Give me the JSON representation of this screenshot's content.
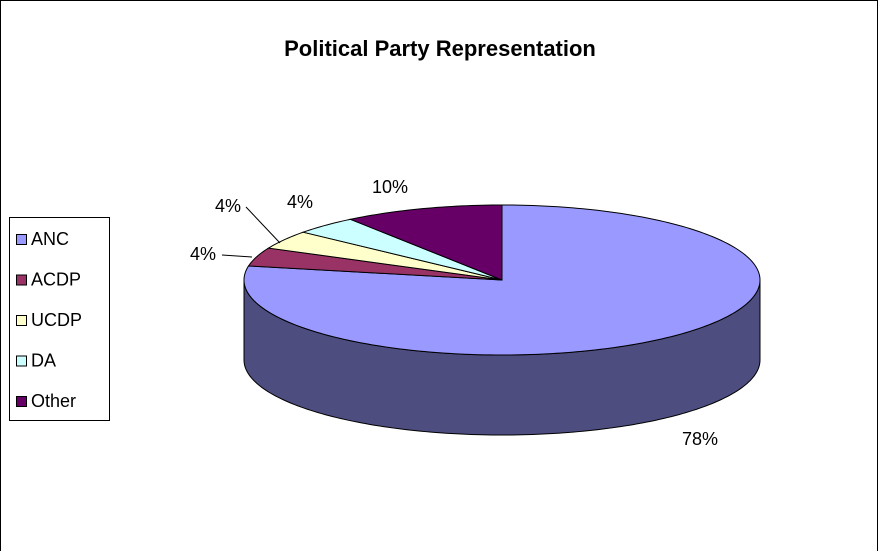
{
  "chart_data": {
    "type": "pie3d",
    "title": "Political Party Representation",
    "categories": [
      "ANC",
      "ACDP",
      "UCDP",
      "DA",
      "Other"
    ],
    "values": [
      78,
      4,
      4,
      4,
      10
    ],
    "value_labels": [
      "78%",
      "4%",
      "4%",
      "4%",
      "10%"
    ],
    "colors": [
      "#9999ff",
      "#993366",
      "#ffffcc",
      "#ccffff",
      "#660066"
    ],
    "legend": "left"
  }
}
